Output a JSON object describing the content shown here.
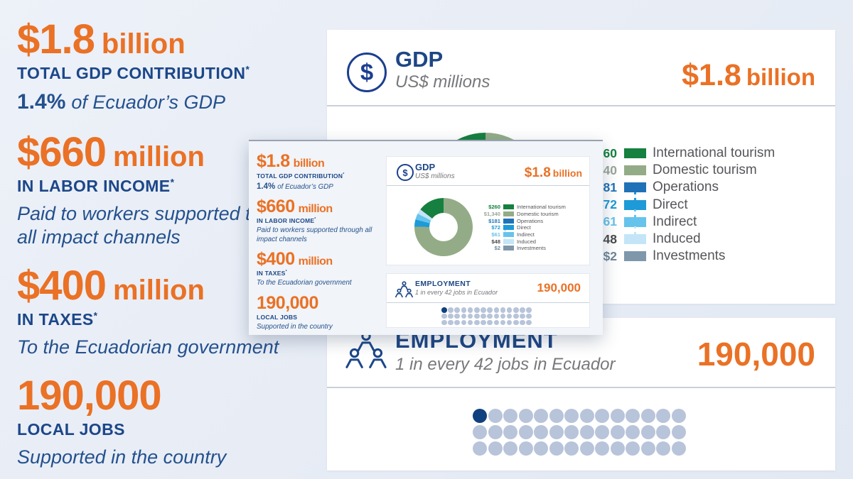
{
  "colors": {
    "orange": "#ea7125",
    "navy": "#1c4789",
    "subtitle_gray": "#77787b",
    "legend_label_gray": "#55565a",
    "page_background": "#e8edf5",
    "card_background": "#ffffff",
    "overlay_background": "#f1f4f8",
    "dot_highlight": "#10407f",
    "dot_normal": "#b7c4da"
  },
  "stats": [
    {
      "amount": "$1.8",
      "unit": "billion",
      "label": "TOTAL GDP CONTRIBUTION",
      "star": "*",
      "note_strong": "1.4%",
      "note": "of Ecuador’s GDP"
    },
    {
      "amount": "$660",
      "unit": "million",
      "label": "IN LABOR INCOME",
      "star": "*",
      "note_strong": "",
      "note": "Paid to workers supported through all impact channels"
    },
    {
      "amount": "$400",
      "unit": "million",
      "label": "IN TAXES",
      "star": "*",
      "note_strong": "",
      "note": "To the Ecuadorian government"
    },
    {
      "amount": "190,000",
      "unit": "",
      "label": "LOCAL JOBS",
      "star": "",
      "note_strong": "",
      "note": "Supported in the country"
    }
  ],
  "gdp_card": {
    "icon": "dollar-circle-icon",
    "title": "GDP",
    "subtitle": "US$ millions",
    "total_amount": "$1.8",
    "total_unit": "billion"
  },
  "employment_card": {
    "icon": "people-icon",
    "title": "EMPLOYMENT",
    "subtitle": "1 in every 42 jobs in Ecuador",
    "total": "190,000",
    "dots_total": 42,
    "dots_highlighted": 1
  },
  "chart_data": {
    "type": "pie",
    "title": "GDP",
    "subtitle": "US$ millions",
    "total_label": "$1.8 billion",
    "legend_position": "right",
    "series": [
      {
        "label": "International tourism",
        "value": 260,
        "display": "$260",
        "color": "#15803f",
        "value_color": "#15803f",
        "subtotal": false,
        "connected": false
      },
      {
        "label": "Domestic tourism",
        "value": 1340,
        "display": "$1,340",
        "color": "#93ac87",
        "value_color": "#9aa698",
        "subtotal": false,
        "connected": false
      },
      {
        "label": "Operations",
        "value": 181,
        "display": "$181",
        "color": "#1f72b8",
        "value_color": "#1f72b8",
        "subtotal": true,
        "connected": false
      },
      {
        "label": "Direct",
        "value": 72,
        "display": "$72",
        "color": "#1d9ad7",
        "value_color": "#1d9ad7",
        "subtotal": false,
        "connected": true
      },
      {
        "label": "Indirect",
        "value": 61,
        "display": "$61",
        "color": "#66c3eb",
        "value_color": "#66c3eb",
        "subtotal": false,
        "connected": true
      },
      {
        "label": "Induced",
        "value": 48,
        "display": "$48",
        "color": "#c3e5f7",
        "value_color": "#4a4b4d",
        "subtotal": false,
        "connected": true
      },
      {
        "label": "Investments",
        "value": 2,
        "display": "$2",
        "color": "#7e97ab",
        "value_color": "#6e8698",
        "subtotal": false,
        "connected": false
      }
    ],
    "donut_clockwise_order": [
      "Domestic tourism",
      "Direct",
      "Indirect",
      "Induced",
      "Investments",
      "International tourism"
    ]
  }
}
